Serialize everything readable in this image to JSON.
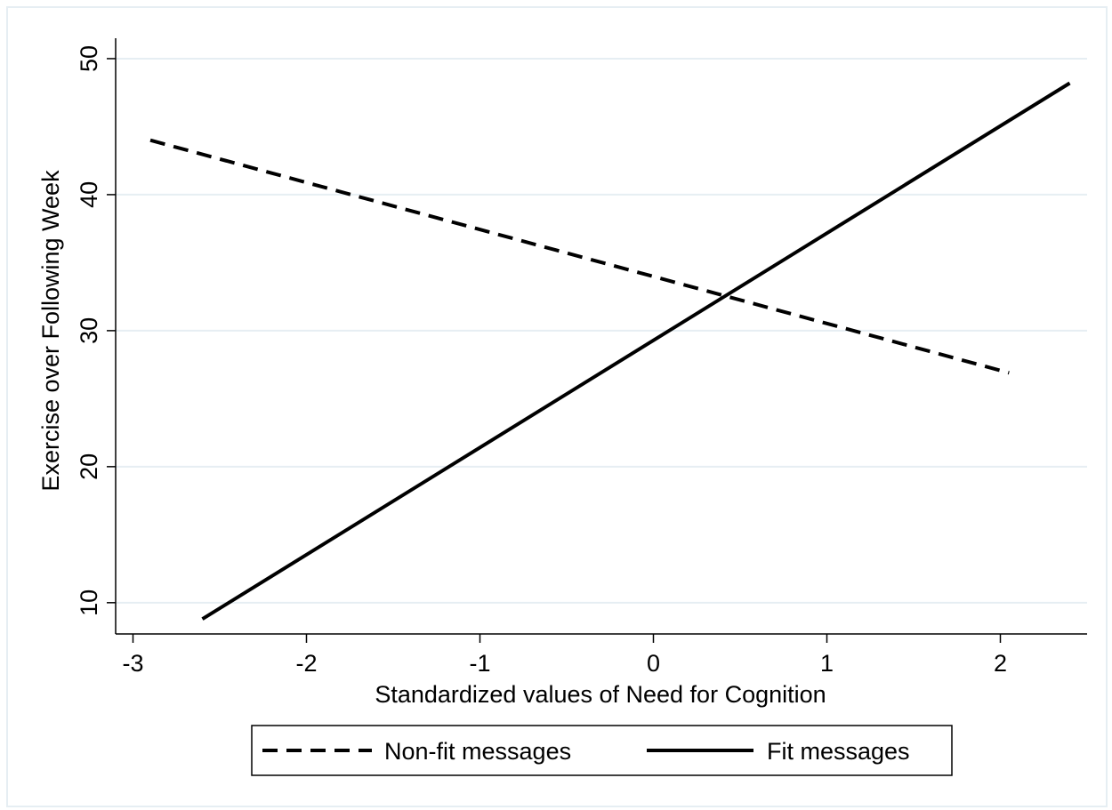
{
  "chart_data": {
    "type": "line",
    "xlabel": "Standardized values of Need for Cognition",
    "ylabel": "Exercise over Following Week",
    "xlim": [
      -3.1,
      2.5
    ],
    "ylim": [
      7.7,
      51.5
    ],
    "x_ticks": [
      -3,
      -2,
      -1,
      0,
      1,
      2
    ],
    "x_tick_labels": [
      "-3",
      "-2",
      "-1",
      "0",
      "1",
      "2"
    ],
    "y_ticks": [
      10,
      20,
      30,
      40,
      50
    ],
    "y_tick_labels": [
      "10",
      "20",
      "30",
      "40",
      "50"
    ],
    "grid": "horizontal",
    "legend_position": "bottom",
    "series": [
      {
        "name": "Non-fit messages",
        "style": "dashed",
        "color": "#000000",
        "x": [
          -2.9,
          2.05
        ],
        "y": [
          44.0,
          26.9
        ]
      },
      {
        "name": "Fit messages",
        "style": "solid",
        "color": "#000000",
        "x": [
          -2.6,
          2.4
        ],
        "y": [
          8.8,
          48.2
        ]
      }
    ]
  }
}
